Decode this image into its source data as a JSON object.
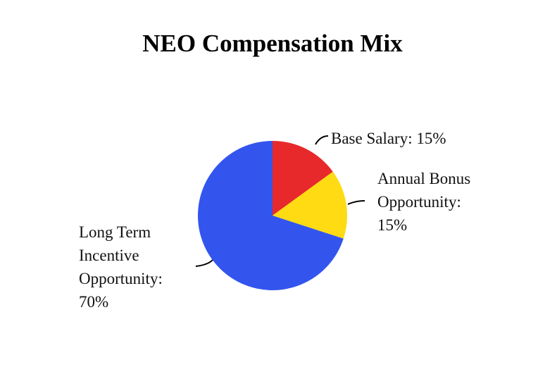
{
  "chart_data": {
    "type": "pie",
    "title": "NEO Compensation Mix",
    "values": [
      15,
      15,
      70
    ],
    "value_labels": [
      "Base Salary: 15%",
      "Annual Bonus Opportunity: 15%",
      "Long Term Incentive Opportunity: 70%"
    ],
    "colors": [
      "#e8292b",
      "#fedb12",
      "#3355ee"
    ]
  }
}
